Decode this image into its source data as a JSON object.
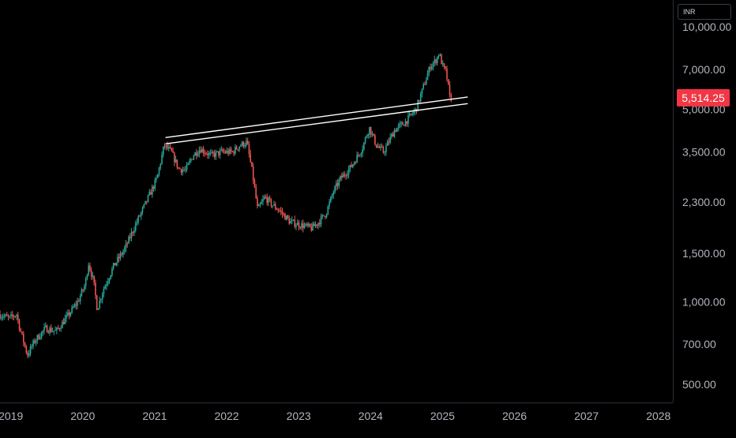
{
  "header": {
    "currency": "INR"
  },
  "chart_data": {
    "type": "candlestick",
    "y_scale": "log",
    "ylim": [
      430,
      12500
    ],
    "xlim": [
      2018.85,
      2028.2
    ],
    "y_ticks": [
      10000,
      7000,
      5000,
      3500,
      2300,
      1500,
      1000,
      700,
      500
    ],
    "y_tick_labels": [
      "10,000.00",
      "7,000.00",
      "5,000.00",
      "3,500.00",
      "2,300.00",
      "1,500.00",
      "1,000.00",
      "700.00",
      "500.00"
    ],
    "x_ticks": [
      2019,
      2020,
      2021,
      2022,
      2023,
      2024,
      2025,
      2026,
      2027,
      2028
    ],
    "x_tick_labels": [
      "2019",
      "2020",
      "2021",
      "2022",
      "2023",
      "2024",
      "2025",
      "2026",
      "2027",
      "2028"
    ],
    "last_price": 5514.25,
    "last_price_label": "5,514.25",
    "colors": {
      "up": "#26a69a",
      "down": "#ef5350",
      "last_price_bg": "#f23645",
      "trendline": "#ffffff",
      "text": "#b2b5be"
    },
    "price_path": [
      [
        2018.85,
        900
      ],
      [
        2019.0,
        870
      ],
      [
        2019.1,
        900
      ],
      [
        2019.15,
        790
      ],
      [
        2019.25,
        640
      ],
      [
        2019.35,
        720
      ],
      [
        2019.5,
        800
      ],
      [
        2019.65,
        780
      ],
      [
        2019.8,
        880
      ],
      [
        2019.95,
        1000
      ],
      [
        2020.05,
        1150
      ],
      [
        2020.1,
        1380
      ],
      [
        2020.17,
        1180
      ],
      [
        2020.22,
        940
      ],
      [
        2020.3,
        1100
      ],
      [
        2020.45,
        1350
      ],
      [
        2020.6,
        1550
      ],
      [
        2020.75,
        1900
      ],
      [
        2020.9,
        2300
      ],
      [
        2021.05,
        2800
      ],
      [
        2021.15,
        3700
      ],
      [
        2021.25,
        3500
      ],
      [
        2021.35,
        3050
      ],
      [
        2021.45,
        3000
      ],
      [
        2021.55,
        3400
      ],
      [
        2021.65,
        3600
      ],
      [
        2021.8,
        3400
      ],
      [
        2021.95,
        3500
      ],
      [
        2022.1,
        3500
      ],
      [
        2022.2,
        3700
      ],
      [
        2022.3,
        3800
      ],
      [
        2022.38,
        2900
      ],
      [
        2022.45,
        2150
      ],
      [
        2022.55,
        2400
      ],
      [
        2022.65,
        2250
      ],
      [
        2022.75,
        2150
      ],
      [
        2022.9,
        1950
      ],
      [
        2023.05,
        1900
      ],
      [
        2023.2,
        1850
      ],
      [
        2023.3,
        1950
      ],
      [
        2023.4,
        2100
      ],
      [
        2023.5,
        2500
      ],
      [
        2023.6,
        2800
      ],
      [
        2023.75,
        3100
      ],
      [
        2023.9,
        3600
      ],
      [
        2024.0,
        4300
      ],
      [
        2024.1,
        3700
      ],
      [
        2024.2,
        3500
      ],
      [
        2024.35,
        4200
      ],
      [
        2024.5,
        4500
      ],
      [
        2024.65,
        5000
      ],
      [
        2024.75,
        6000
      ],
      [
        2024.85,
        7200
      ],
      [
        2024.92,
        7500
      ],
      [
        2024.97,
        8000
      ],
      [
        2025.02,
        7200
      ],
      [
        2025.07,
        6800
      ],
      [
        2025.12,
        5514.25
      ]
    ],
    "trendlines": [
      {
        "name": "upper",
        "from": [
          2021.15,
          3950
        ],
        "to": [
          2025.35,
          5550
        ]
      },
      {
        "name": "lower",
        "from": [
          2021.15,
          3750
        ],
        "to": [
          2025.35,
          5250
        ]
      }
    ]
  }
}
